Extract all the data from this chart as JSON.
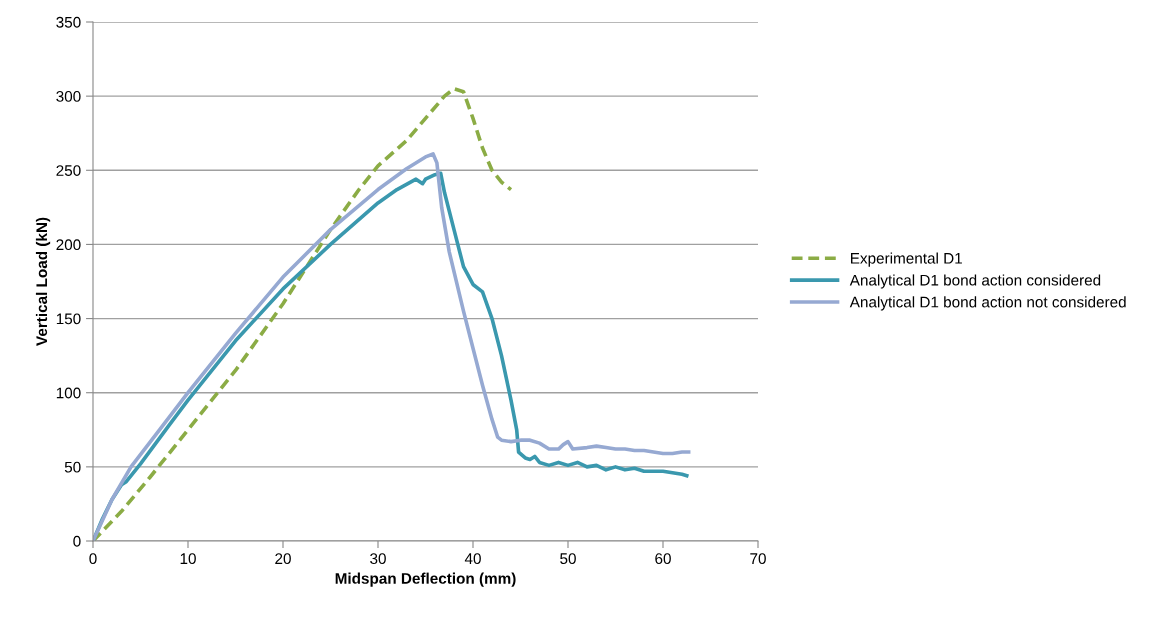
{
  "chart_data": {
    "type": "line",
    "xlabel": "Midspan Deflection (mm)",
    "ylabel": "Vertical Load (kN)",
    "xlim": [
      0,
      70
    ],
    "xticks": [
      0,
      10,
      20,
      30,
      40,
      50,
      60,
      70
    ],
    "ylim": [
      0,
      350
    ],
    "yticks": [
      0,
      50,
      100,
      150,
      200,
      250,
      300,
      350
    ],
    "grid": "y",
    "legend": "right",
    "series": [
      {
        "name": "Experimental D1",
        "color": "#8bac45",
        "line_style": "dashed",
        "x": [
          0,
          3,
          6,
          10,
          15,
          20,
          25,
          28,
          30,
          33,
          35,
          37,
          38,
          39,
          40,
          41,
          42,
          43,
          44
        ],
        "values": [
          0,
          20,
          43,
          75,
          115,
          160,
          210,
          237,
          253,
          270,
          285,
          300,
          305,
          303,
          285,
          265,
          250,
          242,
          237
        ]
      },
      {
        "name": "Analytical D1 bond action considered",
        "color": "#3a98ae",
        "line_style": "solid",
        "x": [
          0,
          1,
          2,
          3,
          3.5,
          5,
          8,
          10,
          15,
          20,
          25,
          30,
          32,
          34,
          34.7,
          35,
          36,
          36.6,
          37,
          38,
          39,
          40,
          41,
          42,
          43,
          44,
          44.6,
          44.8,
          45.5,
          46,
          46.5,
          47,
          48,
          49,
          50,
          51,
          52,
          53,
          54,
          55,
          56,
          57,
          58,
          60,
          61,
          62,
          62.5
        ],
        "values": [
          0,
          15,
          28,
          38,
          40,
          52,
          78,
          95,
          135,
          170,
          200,
          228,
          237,
          244,
          241,
          244,
          247,
          248,
          235,
          210,
          185,
          173,
          168,
          150,
          125,
          95,
          75,
          60,
          56,
          55,
          57,
          53,
          51,
          53,
          51,
          53,
          50,
          51,
          48,
          50,
          48,
          49,
          47,
          47,
          46,
          45,
          44
        ]
      },
      {
        "name": "Analytical D1 bond action not considered",
        "color": "#96a9d2",
        "line_style": "solid",
        "x": [
          0,
          2,
          4,
          7,
          10,
          15,
          20,
          25,
          30,
          33,
          35,
          35.8,
          36.2,
          36.7,
          37.5,
          39,
          40,
          41,
          42,
          42.6,
          43,
          44,
          45,
          46,
          47,
          48,
          49,
          49.5,
          50,
          50.5,
          52,
          53,
          54,
          55,
          56,
          57,
          58,
          59,
          60,
          61,
          62,
          62.7
        ],
        "values": [
          0,
          28,
          50,
          75,
          100,
          140,
          178,
          210,
          237,
          251,
          259,
          261,
          255,
          225,
          195,
          155,
          130,
          105,
          82,
          70,
          68,
          67,
          68,
          68,
          66,
          62,
          62,
          65,
          67,
          62,
          63,
          64,
          63,
          62,
          62,
          61,
          61,
          60,
          59,
          59,
          60,
          60
        ]
      }
    ]
  }
}
